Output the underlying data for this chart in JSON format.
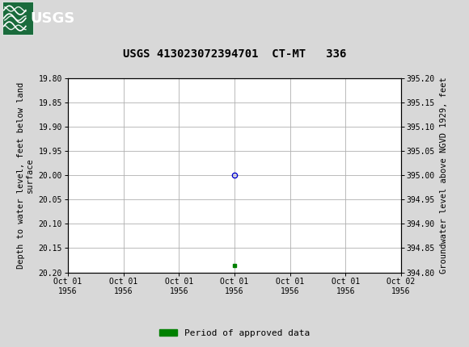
{
  "title": "USGS 413023072394701  CT-MT   336",
  "header_bg_color": "#1a6b3c",
  "header_text_color": "#ffffff",
  "fig_bg_color": "#d8d8d8",
  "plot_bg_color": "#ffffff",
  "grid_color": "#b0b0b0",
  "ylabel_left": "Depth to water level, feet below land\nsurface",
  "ylabel_right": "Groundwater level above NGVD 1929, feet",
  "ylim_left_top": 19.8,
  "ylim_left_bottom": 20.2,
  "ylim_right_bottom": 394.8,
  "ylim_right_top": 395.2,
  "left_yticks": [
    19.8,
    19.85,
    19.9,
    19.95,
    20.0,
    20.05,
    20.1,
    20.15,
    20.2
  ],
  "right_yticks": [
    394.8,
    394.85,
    394.9,
    394.95,
    395.0,
    395.05,
    395.1,
    395.15,
    395.2
  ],
  "data_point_x_hour": 12,
  "data_point_y": 20.0,
  "data_point_color": "#0000cc",
  "green_dot_y": 20.185,
  "green_dot_color": "#008000",
  "xtick_hours": [
    0,
    4,
    8,
    12,
    16,
    20,
    24
  ],
  "xtick_labels": [
    "Oct 01\n1956",
    "Oct 01\n1956",
    "Oct 01\n1956",
    "Oct 01\n1956",
    "Oct 01\n1956",
    "Oct 01\n1956",
    "Oct 02\n1956"
  ],
  "legend_label": "Period of approved data",
  "legend_color": "#008000",
  "font_family": "DejaVu Sans Mono",
  "title_fontsize": 10,
  "axis_label_fontsize": 7.5,
  "tick_fontsize": 7,
  "legend_fontsize": 8
}
